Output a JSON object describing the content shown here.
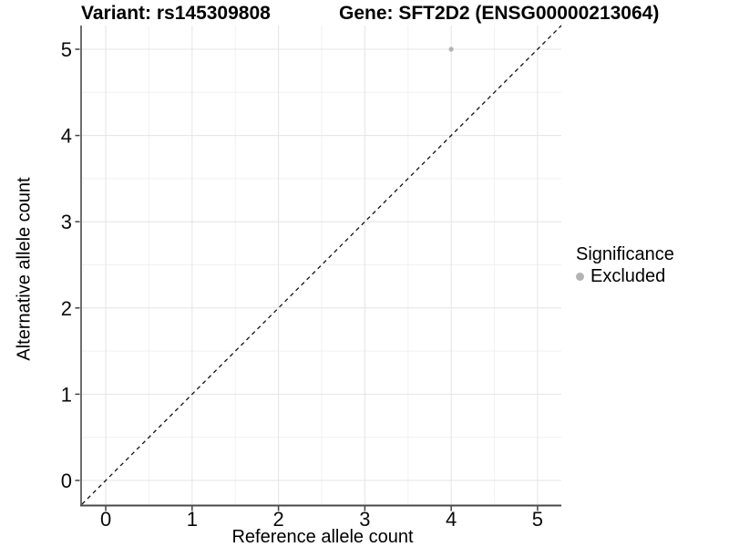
{
  "titles": {
    "variant": "Variant: rs145309808",
    "gene": "Gene: SFT2D2 (ENSG00000213064)"
  },
  "chart_data": {
    "type": "scatter",
    "title": "Variant: rs145309808 — Gene: SFT2D2 (ENSG00000213064)",
    "xlabel": "Reference allele count",
    "ylabel": "Alternative allele count",
    "xlim": [
      -0.275,
      5.275
    ],
    "ylim": [
      -0.275,
      5.275
    ],
    "xticks": [
      0,
      1,
      2,
      3,
      4,
      5
    ],
    "yticks": [
      0,
      1,
      2,
      3,
      4,
      5
    ],
    "minor_ticks_x": [
      0.5,
      1.5,
      2.5,
      3.5,
      4.5
    ],
    "minor_ticks_y": [
      0.5,
      1.5,
      2.5,
      3.5,
      4.5
    ],
    "grid": true,
    "series": [
      {
        "name": "Excluded",
        "color": "#b3b3b3",
        "point_radius": 2.6,
        "points": [
          [
            4,
            5
          ]
        ]
      }
    ],
    "reference_line": {
      "slope": 1,
      "intercept": 0,
      "style": "dashed",
      "color": "#111111"
    },
    "legend": {
      "title": "Significance",
      "position": "right",
      "items": [
        {
          "label": "Excluded",
          "color": "#b3b3b3",
          "marker": "circle"
        }
      ]
    }
  },
  "colors": {
    "background": "#ffffff",
    "grid_major": "#e4e4e4",
    "grid_minor": "#f1f1f1",
    "axis_line": "#4a4a4a",
    "tick_mark": "#404040",
    "tick_label": "#0a0a0a"
  }
}
